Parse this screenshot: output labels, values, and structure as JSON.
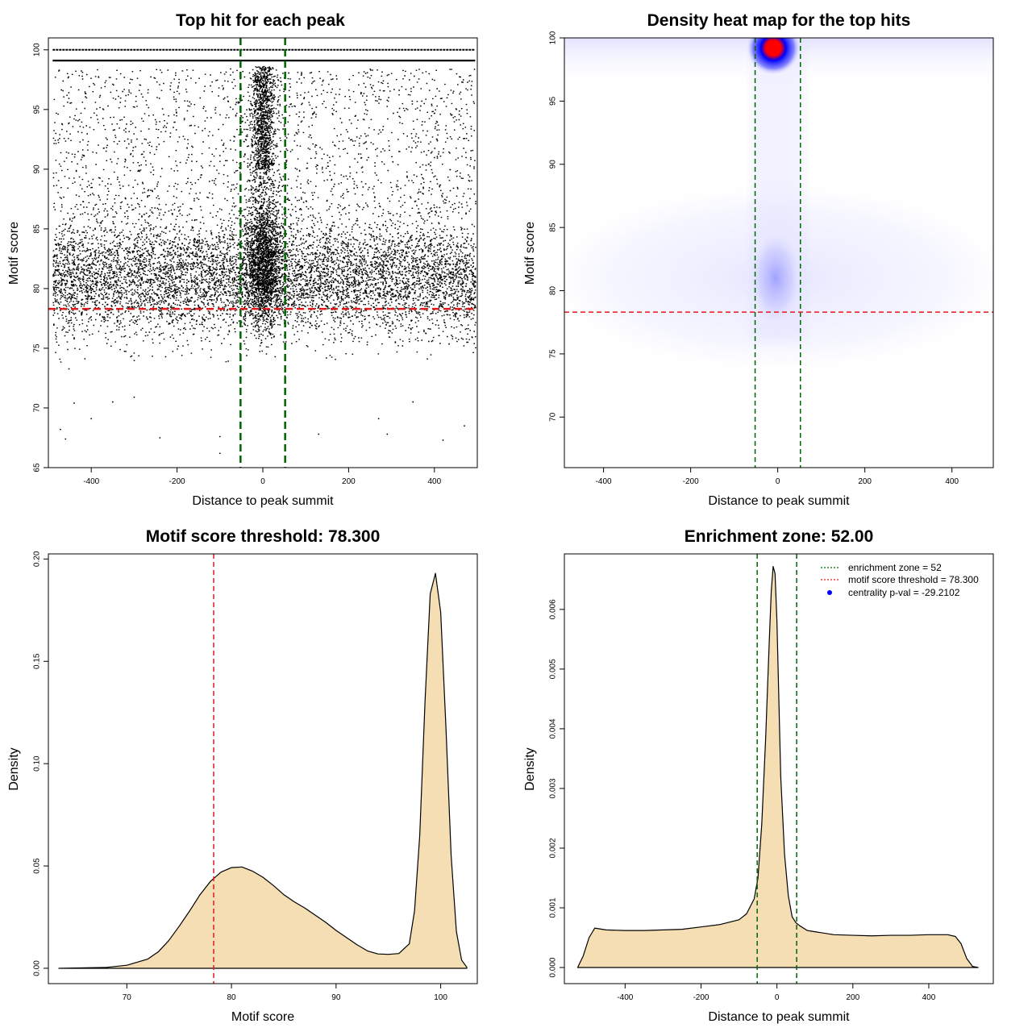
{
  "colors": {
    "points": "#000000",
    "enrichment_line": "#006400",
    "threshold_line": "#e31a1c",
    "density_fill": "#f5deb3",
    "heat_low": "#ffffff",
    "heat_mid": "#0000ff",
    "heat_high": "#ff0000",
    "legend_dot": "#0000ff"
  },
  "chart_data": [
    {
      "id": "scatter",
      "type": "scatter",
      "title": "Top hit for each peak",
      "xlabel": "Distance to peak summit",
      "ylabel": "Motif score",
      "xlim": [
        -500,
        500
      ],
      "ylim": [
        65,
        101
      ],
      "xticks": [
        -400,
        -200,
        0,
        200,
        400
      ],
      "xtick_labels": [
        "-400",
        "-200",
        "0",
        "200",
        "400"
      ],
      "yticks": [
        65,
        70,
        75,
        80,
        85,
        90,
        95,
        100
      ],
      "ytick_labels": [
        "65",
        "70",
        "75",
        "80",
        "85",
        "90",
        "95",
        "100"
      ],
      "vlines": [
        -52,
        52
      ],
      "hline": 78.3,
      "point_summary": {
        "x_range": [
          -490,
          495
        ],
        "bulk_score_center": 81,
        "central_cluster_x": 0,
        "central_cluster_score": 82,
        "band_scores": [
          100,
          99.1
        ]
      },
      "sample_points": [
        {
          "x": -472,
          "y": 68.2
        },
        {
          "x": -460,
          "y": 67.4
        },
        {
          "x": -440,
          "y": 70.4
        },
        {
          "x": -400,
          "y": 69.1
        },
        {
          "x": -350,
          "y": 70.5
        },
        {
          "x": -300,
          "y": 70.9
        },
        {
          "x": -240,
          "y": 67.5
        },
        {
          "x": -100,
          "y": 67.6
        },
        {
          "x": -100,
          "y": 66.2
        },
        {
          "x": 130,
          "y": 67.8
        },
        {
          "x": 270,
          "y": 69.1
        },
        {
          "x": 290,
          "y": 67.8
        },
        {
          "x": 350,
          "y": 70.5
        },
        {
          "x": 420,
          "y": 67.3
        },
        {
          "x": 470,
          "y": 68.5
        }
      ]
    },
    {
      "id": "heatmap",
      "type": "heatmap",
      "title": "Density heat map for the top hits",
      "xlabel": "Distance to peak summit",
      "ylabel": "Motif score",
      "xlim": [
        -490,
        495
      ],
      "ylim": [
        66,
        100
      ],
      "xticks": [
        -400,
        -200,
        0,
        200,
        400
      ],
      "xtick_labels": [
        "-400",
        "-200",
        "0",
        "200",
        "400"
      ],
      "yticks": [
        70,
        75,
        80,
        85,
        90,
        95,
        100
      ],
      "ytick_labels": [
        "70",
        "75",
        "80",
        "85",
        "90",
        "95",
        "100"
      ],
      "vlines": [
        -52,
        52
      ],
      "hline": 78.3,
      "hotspots": [
        {
          "x": -10,
          "y": 99.2,
          "intensity": "high"
        },
        {
          "x": -5,
          "y": 81,
          "intensity": "moderate"
        },
        {
          "x": 0,
          "y": 81,
          "intensity": "low broad band",
          "x_extent": [
            -490,
            495
          ],
          "y_extent": [
            75,
            87
          ]
        }
      ]
    },
    {
      "id": "score_density",
      "type": "area",
      "title": "Motif score threshold: 78.300",
      "xlabel": "Motif score",
      "ylabel": "Density",
      "xlim": [
        62.5,
        103.5
      ],
      "ylim": [
        -0.0075,
        0.2025
      ],
      "xticks": [
        70,
        80,
        90,
        100
      ],
      "xtick_labels": [
        "70",
        "80",
        "90",
        "100"
      ],
      "yticks": [
        0,
        0.05,
        0.1,
        0.15,
        0.2
      ],
      "ytick_labels": [
        "0.00",
        "0.05",
        "0.10",
        "0.15",
        "0.20"
      ],
      "vline": 78.3,
      "x": [
        63.5,
        68,
        70,
        72,
        73,
        74,
        75,
        76,
        77,
        78,
        79,
        80,
        81,
        82,
        83,
        84,
        85,
        86,
        87,
        88,
        89,
        90,
        91,
        92,
        93,
        94,
        95,
        96,
        97,
        97.5,
        98,
        98.5,
        99,
        99.5,
        100,
        100.5,
        101,
        101.5,
        102,
        102.5
      ],
      "y": [
        0,
        0.0004,
        0.0015,
        0.0045,
        0.008,
        0.0135,
        0.0205,
        0.028,
        0.036,
        0.0425,
        0.047,
        0.0492,
        0.0495,
        0.0475,
        0.0445,
        0.0405,
        0.036,
        0.0325,
        0.0295,
        0.026,
        0.0225,
        0.0185,
        0.015,
        0.0115,
        0.0085,
        0.007,
        0.0068,
        0.0072,
        0.012,
        0.028,
        0.065,
        0.13,
        0.183,
        0.193,
        0.174,
        0.118,
        0.055,
        0.018,
        0.004,
        0.0005
      ]
    },
    {
      "id": "distance_density",
      "type": "area",
      "title": "Enrichment zone: 52.00",
      "xlabel": "Distance to peak summit",
      "ylabel": "Density",
      "xlim": [
        -560,
        570
      ],
      "ylim": [
        -0.00027,
        0.00693
      ],
      "xticks": [
        -400,
        -200,
        0,
        200,
        400
      ],
      "xtick_labels": [
        "-400",
        "-200",
        "0",
        "200",
        "400"
      ],
      "yticks": [
        0,
        0.001,
        0.002,
        0.003,
        0.004,
        0.005,
        0.006
      ],
      "ytick_labels": [
        "0.000",
        "0.001",
        "0.002",
        "0.003",
        "0.004",
        "0.005",
        "0.006"
      ],
      "vlines": [
        -52,
        52
      ],
      "x": [
        -525,
        -510,
        -495,
        -480,
        -470,
        -450,
        -400,
        -350,
        -300,
        -250,
        -200,
        -150,
        -100,
        -80,
        -60,
        -50,
        -40,
        -30,
        -20,
        -15,
        -10,
        -5,
        0,
        5,
        10,
        20,
        30,
        40,
        50,
        60,
        80,
        100,
        150,
        200,
        250,
        300,
        350,
        400,
        450,
        470,
        485,
        500,
        515,
        530
      ],
      "y": [
        0,
        0.0002,
        0.0005,
        0.00066,
        0.00065,
        0.00063,
        0.00062,
        0.00062,
        0.00063,
        0.00064,
        0.00068,
        0.00072,
        0.0008,
        0.0009,
        0.00115,
        0.0015,
        0.0024,
        0.0038,
        0.0055,
        0.0063,
        0.00672,
        0.0066,
        0.0058,
        0.0045,
        0.0032,
        0.0019,
        0.0012,
        0.00085,
        0.00075,
        0.0007,
        0.00062,
        0.0006,
        0.00055,
        0.00054,
        0.00053,
        0.00054,
        0.00054,
        0.00055,
        0.00055,
        0.00052,
        0.0004,
        0.00015,
        2e-05,
        0
      ],
      "legend": {
        "position": "top-right",
        "entries": [
          {
            "label": "enrichment zone = 52",
            "style": "dotted-line",
            "color": "#006400"
          },
          {
            "label": "motif score threshold = 78.300",
            "style": "dotted-line",
            "color": "#e31a1c"
          },
          {
            "label": "centrality p-val = -29.2102",
            "style": "dot",
            "color": "#0000ff"
          }
        ]
      }
    }
  ]
}
